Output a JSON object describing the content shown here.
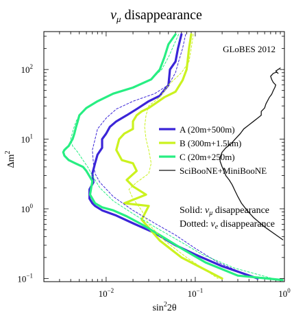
{
  "chart_data": {
    "type": "line",
    "title_symbol": "ν",
    "title_sub": "μ",
    "title_rest": " disappearance",
    "xlabel_main": "sin",
    "xlabel_sup": "2",
    "xlabel_tail": "2θ",
    "ylabel_main": "Δm",
    "ylabel_sup": "2",
    "x_scale": "log",
    "y_scale": "log",
    "xlim": [
      0.002,
      1.0
    ],
    "ylim": [
      0.09,
      350
    ],
    "x_ticks": [
      {
        "value": 0.01,
        "base": "10",
        "exp": "−2"
      },
      {
        "value": 0.1,
        "base": "10",
        "exp": "−1"
      },
      {
        "value": 1.0,
        "base": "10",
        "exp": "0"
      }
    ],
    "y_ticks": [
      {
        "value": 0.1,
        "base": "10",
        "exp": "−1"
      },
      {
        "value": 1.0,
        "base": "10",
        "exp": "0"
      },
      {
        "value": 10.0,
        "base": "10",
        "exp": "1"
      },
      {
        "value": 100.0,
        "base": "10",
        "exp": "2"
      }
    ],
    "grid": false,
    "annotation": "GLoBES 2012",
    "legend_position": "right",
    "note_line1_prefix": "Solid: ",
    "note_line1_sym": "ν",
    "note_line1_sub": "μ",
    "note_line1_rest": " disappearance",
    "note_line2_prefix": "Dotted: ",
    "note_line2_sym": "ν",
    "note_line2_sub": "e",
    "note_line2_rest": " disappearance",
    "series": [
      {
        "name": "A (20m+500m)",
        "color": "#3b25d8",
        "width": 3.2,
        "dash": "",
        "x": [
          0.07,
          0.064,
          0.06,
          0.052,
          0.05,
          0.04,
          0.03,
          0.022,
          0.017,
          0.013,
          0.011,
          0.01,
          0.009,
          0.009,
          0.008,
          0.0075,
          0.007,
          0.0072,
          0.0065,
          0.0065,
          0.007,
          0.0075,
          0.009,
          0.013,
          0.02,
          0.035,
          0.06,
          0.1,
          0.2,
          0.5
        ],
        "y": [
          320,
          200,
          130,
          100,
          60,
          42,
          35,
          27,
          22,
          18,
          15,
          12,
          10,
          7.5,
          6,
          4.5,
          3.2,
          2.4,
          1.9,
          1.4,
          1.2,
          1.1,
          0.95,
          0.8,
          0.62,
          0.45,
          0.3,
          0.22,
          0.15,
          0.1
        ]
      },
      {
        "name": "B (300m+1.5km)",
        "color": "#cbf21f",
        "width": 3.2,
        "dash": "",
        "x": [
          0.09,
          0.085,
          0.082,
          0.08,
          0.072,
          0.06,
          0.045,
          0.035,
          0.03,
          0.025,
          0.022,
          0.02,
          0.02,
          0.016,
          0.014,
          0.013,
          0.015,
          0.02,
          0.022,
          0.017,
          0.02,
          0.028,
          0.016,
          0.03,
          0.025,
          0.04,
          0.07,
          0.2
        ],
        "y": [
          320,
          200,
          130,
          100,
          70,
          48,
          40,
          32,
          28,
          25,
          22,
          18,
          14,
          12,
          10,
          7,
          5,
          4.5,
          3.5,
          2.6,
          2.1,
          1.6,
          1.2,
          1.1,
          0.7,
          0.35,
          0.2,
          0.1
        ]
      },
      {
        "name": "C (20m+250m)",
        "color": "#27ee82",
        "width": 3.2,
        "dash": "",
        "x": [
          0.06,
          0.05,
          0.045,
          0.04,
          0.032,
          0.02,
          0.012,
          0.008,
          0.006,
          0.005,
          0.0048,
          0.0046,
          0.0044,
          0.0042,
          0.004,
          0.0038,
          0.0036,
          0.0034,
          0.0033,
          0.0034,
          0.0038,
          0.0045,
          0.0055,
          0.006,
          0.007,
          0.0068,
          0.0066,
          0.0075,
          0.009,
          0.012,
          0.017,
          0.025,
          0.04,
          0.07,
          0.13,
          0.3,
          0.95
        ],
        "y": [
          320,
          230,
          150,
          100,
          72,
          55,
          45,
          35,
          28,
          22,
          18,
          15,
          12,
          10,
          9,
          8,
          7.5,
          7,
          6.5,
          5.8,
          5,
          4.5,
          4,
          3.5,
          2.5,
          2,
          1.6,
          1.2,
          1.05,
          0.95,
          0.78,
          0.6,
          0.42,
          0.27,
          0.17,
          0.11,
          0.095
        ]
      },
      {
        "name": "A dotted",
        "color": "#3b25d8",
        "width": 1.0,
        "dash": "3,2.5",
        "x": [
          0.078,
          0.072,
          0.065,
          0.06,
          0.05,
          0.035,
          0.02,
          0.013,
          0.01,
          0.008,
          0.0075,
          0.007,
          0.0072,
          0.0075,
          0.0085,
          0.012,
          0.02,
          0.035,
          0.06,
          0.1,
          0.18,
          0.4
        ],
        "y": [
          320,
          200,
          130,
          90,
          60,
          45,
          35,
          27,
          20,
          14,
          10,
          7,
          4.5,
          3.2,
          2.4,
          1.5,
          0.95,
          0.62,
          0.42,
          0.27,
          0.17,
          0.11
        ]
      },
      {
        "name": "B dotted",
        "color": "#cbf21f",
        "width": 1.0,
        "dash": "3,2.5",
        "x": [
          0.095,
          0.09,
          0.085,
          0.07,
          0.05,
          0.04,
          0.03,
          0.028,
          0.027,
          0.028,
          0.03,
          0.032,
          0.03,
          0.022,
          0.018,
          0.02,
          0.025,
          0.03,
          0.045,
          0.08,
          0.18
        ],
        "y": [
          320,
          200,
          130,
          90,
          60,
          40,
          30,
          22,
          15,
          10,
          7,
          4.5,
          3.2,
          2.4,
          1.9,
          1.4,
          0.95,
          0.6,
          0.35,
          0.2,
          0.1
        ]
      },
      {
        "name": "C dotted",
        "color": "#27ee82",
        "width": 1.0,
        "dash": "3,2.5",
        "x": [
          0.065,
          0.058,
          0.05,
          0.042,
          0.032,
          0.02,
          0.012,
          0.008,
          0.006,
          0.005,
          0.0046,
          0.0043,
          0.004,
          0.0042,
          0.0048,
          0.0055,
          0.0062,
          0.007,
          0.0085,
          0.012,
          0.02,
          0.035,
          0.065,
          0.12,
          0.28,
          0.85
        ],
        "y": [
          320,
          230,
          150,
          100,
          72,
          55,
          45,
          35,
          28,
          22,
          18,
          14,
          10,
          8,
          6.5,
          5,
          4,
          3,
          2,
          1.3,
          0.85,
          0.55,
          0.35,
          0.22,
          0.14,
          0.095
        ]
      },
      {
        "name": "SciBooNE+MiniBooNE",
        "color": "#111111",
        "width": 1.3,
        "dash": "",
        "x": [
          0.96,
          0.6,
          0.45,
          0.38,
          0.33,
          0.3,
          0.28,
          0.26,
          0.24,
          0.22,
          0.21,
          0.2,
          0.19,
          0.19,
          0.2,
          0.22,
          0.25,
          0.28,
          0.32,
          0.35,
          0.4,
          0.45,
          0.5,
          0.55,
          0.55,
          0.6,
          0.62,
          0.65,
          0.68,
          0.72,
          0.75,
          0.78,
          0.8,
          0.75,
          0.72,
          0.7,
          0.75,
          0.82,
          0.85,
          0.8,
          0.85,
          0.9
        ],
        "y": [
          0.36,
          0.55,
          0.75,
          0.95,
          1.2,
          1.5,
          1.8,
          2.2,
          2.6,
          3,
          3.5,
          4,
          4.8,
          5.5,
          6.5,
          7.5,
          8.5,
          10,
          12,
          14,
          16,
          18,
          20,
          22,
          25,
          28,
          32,
          36,
          40,
          44,
          50,
          55,
          60,
          65,
          72,
          80,
          88,
          92,
          88,
          95,
          100,
          105
        ]
      }
    ],
    "legend_entries": [
      {
        "name": "A (20m+500m)",
        "color": "#3b25d8",
        "width": 3.2
      },
      {
        "name": "B (300m+1.5km)",
        "color": "#cbf21f",
        "width": 3.2
      },
      {
        "name": "C (20m+250m)",
        "color": "#27ee82",
        "width": 3.2
      },
      {
        "name": "SciBooNE+MiniBooNE",
        "color": "#111111",
        "width": 1.3
      }
    ]
  }
}
